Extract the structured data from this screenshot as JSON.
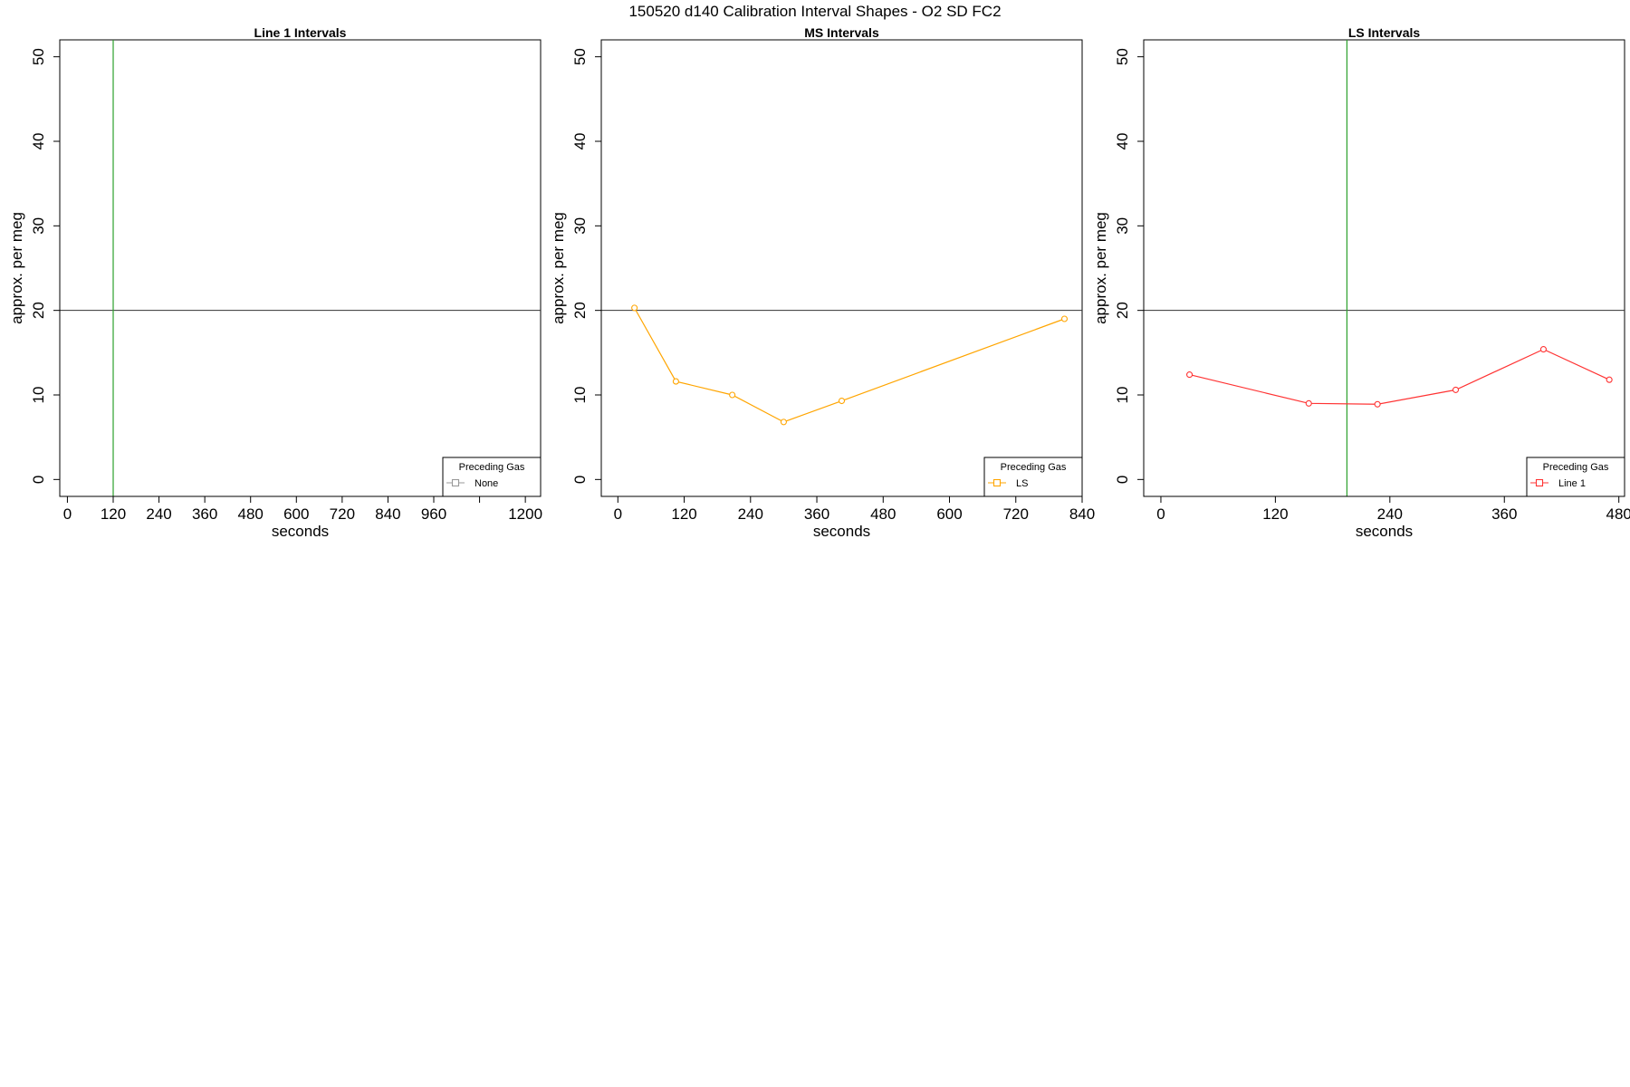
{
  "title": "150520   d140   Calibration Interval Shapes - O2 SD FC2",
  "chart_data": [
    {
      "type": "line",
      "title": "Line 1 Intervals",
      "xlabel": "seconds",
      "ylabel": "approx. per meg",
      "xlim": [
        -20,
        1240
      ],
      "ylim": [
        -2,
        52
      ],
      "xticks": [
        0,
        120,
        240,
        360,
        480,
        600,
        720,
        840,
        960,
        1080,
        1200
      ],
      "xtick_labels": [
        "0",
        "120",
        "240",
        "360",
        "480",
        "600",
        "720",
        "840",
        "960",
        "",
        "1200"
      ],
      "yticks": [
        0,
        10,
        20,
        30,
        40,
        50
      ],
      "hline": 20,
      "vline": 120,
      "vline_color": "#2ca02c",
      "series": [
        {
          "name": "None",
          "color": "#999999",
          "x": [],
          "y": []
        }
      ],
      "legend": {
        "title": "Preceding Gas",
        "position": "bottom-right"
      }
    },
    {
      "type": "line",
      "title": "MS Intervals",
      "xlabel": "seconds",
      "ylabel": "approx. per meg",
      "xlim": [
        -30,
        840
      ],
      "ylim": [
        -2,
        52
      ],
      "xticks": [
        0,
        120,
        240,
        360,
        480,
        600,
        720,
        840
      ],
      "xtick_labels": [
        "0",
        "120",
        "240",
        "360",
        "480",
        "600",
        "720",
        "840"
      ],
      "yticks": [
        0,
        10,
        20,
        30,
        40,
        50
      ],
      "hline": 20,
      "series": [
        {
          "name": "LS",
          "color": "#ffa500",
          "x": [
            30,
            105,
            207,
            300,
            405,
            808
          ],
          "y": [
            20.3,
            11.6,
            10.0,
            6.8,
            9.3,
            19.0
          ]
        }
      ],
      "legend": {
        "title": "Preceding Gas",
        "position": "bottom-right"
      }
    },
    {
      "type": "line",
      "title": "LS Intervals",
      "xlabel": "seconds",
      "ylabel": "approx. per meg",
      "xlim": [
        -18,
        486
      ],
      "ylim": [
        -2,
        52
      ],
      "xticks": [
        0,
        120,
        240,
        360,
        480
      ],
      "xtick_labels": [
        "0",
        "120",
        "240",
        "360",
        "480"
      ],
      "yticks": [
        0,
        10,
        20,
        30,
        40,
        50
      ],
      "hline": 20,
      "vline": 195,
      "vline_color": "#2ca02c",
      "series": [
        {
          "name": "Line 1",
          "color": "#ff3333",
          "x": [
            30,
            155,
            227,
            309,
            401,
            470
          ],
          "y": [
            12.4,
            9.0,
            8.9,
            10.6,
            15.4,
            11.8
          ]
        }
      ],
      "legend": {
        "title": "Preceding Gas",
        "position": "bottom-right"
      }
    }
  ]
}
